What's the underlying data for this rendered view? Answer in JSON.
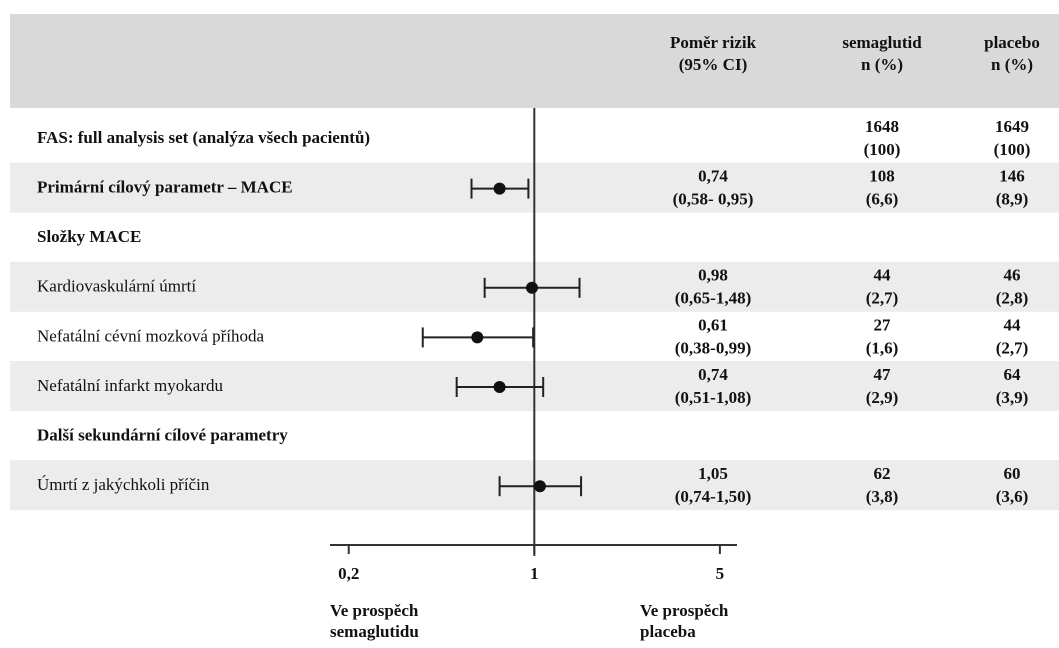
{
  "chart_data": {
    "type": "forest",
    "headers": {
      "hr": [
        "Poměr rizik",
        "(95% CI)"
      ],
      "semaglutid": [
        "semaglutid",
        "n (%)"
      ],
      "placebo": [
        "placebo",
        "n (%)"
      ]
    },
    "rows": [
      {
        "label": "FAS: full analysis set (analýza všech pacientů)",
        "semaglutid": {
          "n": 1648,
          "pct": 100,
          "pct_label": "(100)"
        },
        "placebo": {
          "n": 1649,
          "pct": 100,
          "pct_label": "(100)"
        }
      },
      {
        "label": "Primární cílový parametr – MACE",
        "hr": 0.74,
        "hr_label": "0,74",
        "ci": [
          0.58,
          0.95
        ],
        "ci_label": "(0,58- 0,95)",
        "semaglutid": {
          "n": 108,
          "pct": 6.6,
          "pct_label": "(6,6)"
        },
        "placebo": {
          "n": 146,
          "pct": 8.9,
          "pct_label": "(8,9)"
        }
      },
      {
        "label": "Složky MACE"
      },
      {
        "label": "Kardiovaskulární úmrtí",
        "sub": true,
        "hr": 0.98,
        "hr_label": "0,98",
        "ci": [
          0.65,
          1.48
        ],
        "ci_label": "(0,65-1,48)",
        "semaglutid": {
          "n": 44,
          "pct": 2.7,
          "pct_label": "(2,7)"
        },
        "placebo": {
          "n": 46,
          "pct": 2.8,
          "pct_label": "(2,8)"
        }
      },
      {
        "label": "Nefatální cévní mozková příhoda",
        "sub": true,
        "hr": 0.61,
        "hr_label": "0,61",
        "ci": [
          0.38,
          0.99
        ],
        "ci_label": "(0,38-0,99)",
        "semaglutid": {
          "n": 27,
          "pct": 1.6,
          "pct_label": "(1,6)"
        },
        "placebo": {
          "n": 44,
          "pct": 2.7,
          "pct_label": "(2,7)"
        }
      },
      {
        "label": "Nefatální infarkt myokardu",
        "sub": true,
        "hr": 0.74,
        "hr_label": "0,74",
        "ci": [
          0.51,
          1.08
        ],
        "ci_label": "(0,51-1,08)",
        "semaglutid": {
          "n": 47,
          "pct": 2.9,
          "pct_label": "(2,9)"
        },
        "placebo": {
          "n": 64,
          "pct": 3.9,
          "pct_label": "(3,9)"
        }
      },
      {
        "label": "Další sekundární cílové parametry"
      },
      {
        "label": "Úmrtí z jakýchkoli příčin",
        "sub": true,
        "hr": 1.05,
        "hr_label": "1,05",
        "ci": [
          0.74,
          1.5
        ],
        "ci_label": "(0,74-1,50)",
        "semaglutid": {
          "n": 62,
          "pct": 3.8,
          "pct_label": "(3,8)"
        },
        "placebo": {
          "n": 60,
          "pct": 3.6,
          "pct_label": "(3,6)"
        }
      }
    ],
    "xscale": "log",
    "xlim": [
      0.17,
      5.8
    ],
    "xticks": [
      {
        "value": 0.2,
        "label": "0,2"
      },
      1,
      5
    ],
    "favours": {
      "left": [
        "Ve prospěch",
        "semaglutidu"
      ],
      "right": [
        "Ve prospěch",
        "placeba"
      ]
    }
  }
}
